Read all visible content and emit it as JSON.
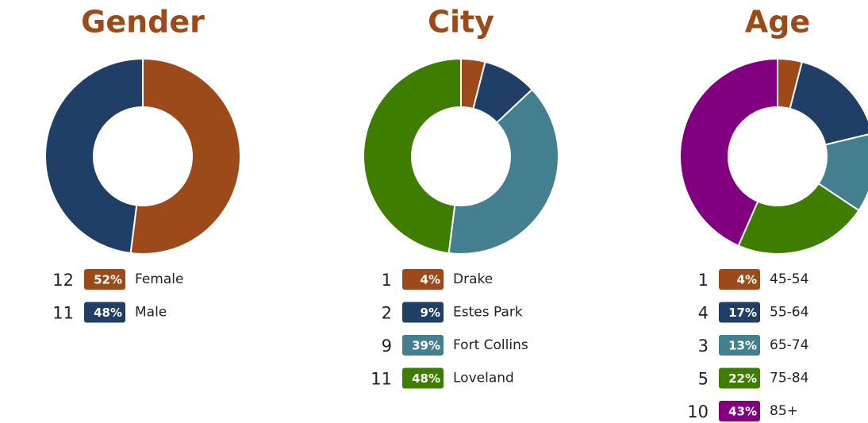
{
  "chart_data": [
    {
      "type": "donut",
      "title": "Gender",
      "categories": [
        "Female",
        "Male"
      ],
      "values": [
        52,
        48
      ],
      "value_labels": [
        "52%",
        "48%"
      ],
      "counts": [
        12,
        11
      ],
      "colors": [
        "#9c4a1a",
        "#1f3f66"
      ]
    },
    {
      "type": "donut",
      "title": "City",
      "categories": [
        "Drake",
        "Estes Park",
        "Fort Collins",
        "Loveland"
      ],
      "values": [
        4,
        9,
        39,
        48
      ],
      "value_labels": [
        "4%",
        "9%",
        "39%",
        "48%"
      ],
      "counts": [
        1,
        2,
        9,
        11
      ],
      "colors": [
        "#9c4a1a",
        "#1f3f66",
        "#437f8e",
        "#3f7d00"
      ]
    },
    {
      "type": "donut",
      "title": "Age",
      "categories": [
        "45-54",
        "55-64",
        "65-74",
        "75-84",
        "85+"
      ],
      "values": [
        4,
        17,
        13,
        22,
        43
      ],
      "value_labels": [
        "4%",
        "17%",
        "13%",
        "22%",
        "43%"
      ],
      "counts": [
        1,
        4,
        3,
        5,
        10
      ],
      "colors": [
        "#9c4a1a",
        "#1f3f66",
        "#437f8e",
        "#3f7d00",
        "#800080"
      ]
    }
  ]
}
